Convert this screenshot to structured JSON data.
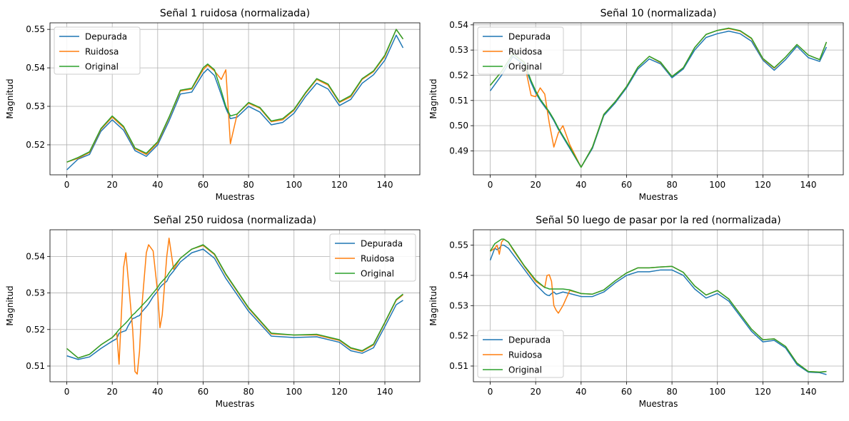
{
  "colors": {
    "series": [
      "#1f77b4",
      "#ff7f0e",
      "#2ca02c"
    ],
    "grid": "#b0b0b0",
    "axis": "#000000",
    "background": "#ffffff"
  },
  "chart_data": [
    {
      "type": "line",
      "title": "Señal 1 ruidosa (normalizada)",
      "xlabel": "Muestras",
      "ylabel": "Magnitud",
      "xlim": [
        -7.4,
        155.4
      ],
      "ylim": [
        0.5122,
        0.5517
      ],
      "xticks": [
        0,
        20,
        40,
        60,
        80,
        100,
        120,
        140
      ],
      "xtick_labels": [
        "0",
        "20",
        "40",
        "60",
        "80",
        "100",
        "120",
        "140"
      ],
      "yticks": [
        0.52,
        0.53,
        0.54,
        0.55
      ],
      "ytick_labels": [
        "0.52",
        "0.53",
        "0.54",
        "0.55"
      ],
      "grid": true,
      "legend_position": "upper-left",
      "x": [
        0,
        5,
        10,
        15,
        20,
        25,
        30,
        35,
        40,
        45,
        50,
        55,
        60,
        62,
        65,
        68,
        70,
        72,
        75,
        80,
        85,
        90,
        95,
        100,
        105,
        110,
        115,
        120,
        125,
        130,
        135,
        140,
        145,
        148
      ],
      "series": [
        {
          "name": "Depurada",
          "values": [
            0.5135,
            0.5163,
            0.5175,
            0.5235,
            0.5265,
            0.5238,
            0.5185,
            0.517,
            0.52,
            0.5262,
            0.5332,
            0.5337,
            0.5385,
            0.5397,
            0.538,
            0.533,
            0.5295,
            0.5268,
            0.5272,
            0.53,
            0.5285,
            0.5252,
            0.5258,
            0.5282,
            0.5325,
            0.536,
            0.5345,
            0.5302,
            0.5318,
            0.536,
            0.5382,
            0.542,
            0.5485,
            0.5452
          ]
        },
        {
          "name": "Ruidosa",
          "values": [
            0.5155,
            0.5165,
            0.518,
            0.524,
            0.5272,
            0.5245,
            0.519,
            0.5175,
            0.5205,
            0.527,
            0.534,
            0.5345,
            0.5395,
            0.5407,
            0.5392,
            0.537,
            0.5395,
            0.5203,
            0.528,
            0.5308,
            0.5295,
            0.526,
            0.5265,
            0.529,
            0.5333,
            0.537,
            0.5355,
            0.531,
            0.5325,
            0.537,
            0.539,
            0.543,
            0.55,
            0.5475
          ]
        },
        {
          "name": "Original",
          "values": [
            0.5155,
            0.5167,
            0.5182,
            0.5242,
            0.5275,
            0.5248,
            0.5192,
            0.5178,
            0.5208,
            0.5272,
            0.5342,
            0.5347,
            0.54,
            0.541,
            0.5395,
            0.534,
            0.53,
            0.5275,
            0.528,
            0.531,
            0.5297,
            0.5262,
            0.5268,
            0.5292,
            0.5335,
            0.5372,
            0.5358,
            0.5312,
            0.5328,
            0.5372,
            0.5392,
            0.5433,
            0.55,
            0.5475
          ]
        }
      ]
    },
    {
      "type": "line",
      "title": "Señal 10 (normalizada)",
      "xlabel": "Muestras",
      "ylabel": "Magnitud",
      "xlim": [
        -7.4,
        155.4
      ],
      "ylim": [
        0.4805,
        0.5408
      ],
      "xticks": [
        0,
        20,
        40,
        60,
        80,
        100,
        120,
        140
      ],
      "xtick_labels": [
        "0",
        "20",
        "40",
        "60",
        "80",
        "100",
        "120",
        "140"
      ],
      "yticks": [
        0.49,
        0.5,
        0.51,
        0.52,
        0.53,
        0.54
      ],
      "ytick_labels": [
        "0.49",
        "0.50",
        "0.51",
        "0.52",
        "0.53",
        "0.54"
      ],
      "grid": true,
      "legend_position": "upper-left",
      "x": [
        0,
        5,
        10,
        15,
        18,
        20,
        22,
        24,
        26,
        28,
        30,
        32,
        35,
        40,
        45,
        50,
        55,
        60,
        65,
        70,
        75,
        80,
        85,
        90,
        95,
        100,
        105,
        110,
        115,
        120,
        125,
        130,
        135,
        140,
        145,
        148
      ],
      "series": [
        {
          "name": "Depurada",
          "values": [
            0.5138,
            0.52,
            0.5275,
            0.5242,
            0.517,
            0.513,
            0.51,
            0.5075,
            0.505,
            0.502,
            0.4985,
            0.4955,
            0.491,
            0.4835,
            0.491,
            0.504,
            0.509,
            0.515,
            0.5225,
            0.5265,
            0.5245,
            0.519,
            0.5225,
            0.53,
            0.535,
            0.5365,
            0.5375,
            0.5365,
            0.5335,
            0.526,
            0.522,
            0.5262,
            0.5315,
            0.527,
            0.5255,
            0.5312
          ]
        },
        {
          "name": "Ruidosa",
          "values": [
            0.516,
            0.5215,
            0.5285,
            0.525,
            0.512,
            0.5115,
            0.515,
            0.5125,
            0.501,
            0.4915,
            0.4972,
            0.5,
            0.4925,
            0.4835,
            0.4915,
            0.5045,
            0.5095,
            0.5155,
            0.5232,
            0.5275,
            0.525,
            0.5195,
            0.523,
            0.531,
            0.5362,
            0.5378,
            0.5385,
            0.5375,
            0.5345,
            0.5265,
            0.5228,
            0.5272,
            0.5322,
            0.528,
            0.5262,
            0.5332
          ]
        },
        {
          "name": "Original",
          "values": [
            0.516,
            0.5215,
            0.5285,
            0.5252,
            0.5178,
            0.5138,
            0.5105,
            0.508,
            0.5055,
            0.5025,
            0.499,
            0.496,
            0.4915,
            0.4835,
            0.4915,
            0.5045,
            0.5095,
            0.5155,
            0.5232,
            0.5275,
            0.5252,
            0.5195,
            0.523,
            0.531,
            0.5362,
            0.5378,
            0.5387,
            0.5377,
            0.5347,
            0.5267,
            0.523,
            0.5272,
            0.5322,
            0.528,
            0.5262,
            0.5332
          ]
        }
      ]
    },
    {
      "type": "line",
      "title": "Señal 250 ruidosa (normalizada)",
      "xlabel": "Muestras",
      "ylabel": "Magnitud",
      "xlim": [
        -7.4,
        155.4
      ],
      "ylim": [
        0.5057,
        0.5473
      ],
      "xticks": [
        0,
        20,
        40,
        60,
        80,
        100,
        120,
        140
      ],
      "xtick_labels": [
        "0",
        "20",
        "40",
        "60",
        "80",
        "100",
        "120",
        "140"
      ],
      "yticks": [
        0.51,
        0.52,
        0.53,
        0.54
      ],
      "ytick_labels": [
        "0.51",
        "0.52",
        "0.53",
        "0.54"
      ],
      "grid": true,
      "legend_position": "upper-right",
      "x": [
        0,
        5,
        10,
        15,
        20,
        22,
        23,
        25,
        26,
        27,
        29,
        30,
        31,
        32,
        33,
        35,
        36,
        38,
        40,
        41,
        42,
        44,
        45,
        47,
        50,
        55,
        60,
        65,
        70,
        80,
        90,
        100,
        110,
        120,
        125,
        130,
        135,
        140,
        145,
        148
      ],
      "series": [
        {
          "name": "Depurada",
          "values": [
            0.5128,
            0.5118,
            0.5125,
            0.5148,
            0.5168,
            0.5175,
            0.519,
            0.5195,
            0.5197,
            0.521,
            0.523,
            0.5232,
            0.5236,
            0.5238,
            0.5248,
            0.5262,
            0.527,
            0.529,
            0.5305,
            0.5315,
            0.5322,
            0.5332,
            0.5345,
            0.536,
            0.5385,
            0.541,
            0.542,
            0.5395,
            0.534,
            0.525,
            0.5182,
            0.5178,
            0.518,
            0.5165,
            0.5142,
            0.5135,
            0.515,
            0.5208,
            0.5268,
            0.528
          ]
        },
        {
          "name": "Ruidosa",
          "values": [
            0.5148,
            0.5122,
            0.5132,
            0.5158,
            0.5178,
            0.519,
            0.5105,
            0.537,
            0.541,
            0.534,
            0.52,
            0.5085,
            0.5078,
            0.514,
            0.526,
            0.541,
            0.5432,
            0.5415,
            0.53,
            0.5205,
            0.524,
            0.54,
            0.545,
            0.5365,
            0.5395,
            0.542,
            0.543,
            0.5405,
            0.535,
            0.5258,
            0.5188,
            0.5185,
            0.5185,
            0.517,
            0.5148,
            0.514,
            0.5158,
            0.5218,
            0.528,
            0.5295
          ]
        },
        {
          "name": "Original",
          "values": [
            0.5148,
            0.5122,
            0.5132,
            0.5158,
            0.5178,
            0.5192,
            0.52,
            0.5212,
            0.5218,
            0.5225,
            0.524,
            0.5245,
            0.5252,
            0.5258,
            0.5265,
            0.5278,
            0.5285,
            0.53,
            0.5315,
            0.5325,
            0.5332,
            0.5345,
            0.5355,
            0.5372,
            0.5395,
            0.542,
            0.5432,
            0.5407,
            0.5352,
            0.526,
            0.519,
            0.5185,
            0.5187,
            0.5172,
            0.515,
            0.5142,
            0.516,
            0.522,
            0.5282,
            0.5297
          ]
        }
      ]
    },
    {
      "type": "line",
      "title": "Señal 50 luego de pasar por la red (normalizada)",
      "xlabel": "Muestras",
      "ylabel": "Magnitud",
      "xlim": [
        -7.4,
        155.4
      ],
      "ylim": [
        0.5048,
        0.5551
      ],
      "xticks": [
        0,
        20,
        40,
        60,
        80,
        100,
        120,
        140
      ],
      "xtick_labels": [
        "0",
        "20",
        "40",
        "60",
        "80",
        "100",
        "120",
        "140"
      ],
      "yticks": [
        0.51,
        0.52,
        0.53,
        0.54,
        0.55
      ],
      "ytick_labels": [
        "0.51",
        "0.52",
        "0.53",
        "0.54",
        "0.55"
      ],
      "grid": true,
      "legend_position": "lower-left",
      "x": [
        0,
        2,
        3,
        4,
        5,
        6,
        8,
        10,
        15,
        20,
        24,
        25,
        26,
        27,
        28,
        29,
        30,
        32,
        35,
        40,
        45,
        50,
        55,
        60,
        65,
        70,
        75,
        80,
        85,
        90,
        95,
        100,
        105,
        110,
        115,
        120,
        125,
        130,
        135,
        140,
        145,
        148
      ],
      "series": [
        {
          "name": "Depurada",
          "values": [
            0.545,
            0.549,
            0.5485,
            0.549,
            0.55,
            0.55,
            0.549,
            0.547,
            0.542,
            0.537,
            0.534,
            0.5335,
            0.5333,
            0.534,
            0.5345,
            0.5338,
            0.534,
            0.5345,
            0.534,
            0.533,
            0.533,
            0.5345,
            0.5375,
            0.54,
            0.5412,
            0.5412,
            0.5418,
            0.5418,
            0.54,
            0.5355,
            0.5325,
            0.534,
            0.5315,
            0.5265,
            0.5215,
            0.518,
            0.5185,
            0.516,
            0.5105,
            0.508,
            0.5078,
            0.5072
          ]
        },
        {
          "name": "Ruidosa",
          "values": [
            0.548,
            0.549,
            0.55,
            0.547,
            0.551,
            0.552,
            0.551,
            0.5485,
            0.543,
            0.538,
            0.536,
            0.54,
            0.5402,
            0.538,
            0.53,
            0.5285,
            0.5275,
            0.53,
            0.535,
            0.534,
            0.5338,
            0.5352,
            0.5382,
            0.5408,
            0.5425,
            0.5425,
            0.5428,
            0.543,
            0.541,
            0.5365,
            0.5335,
            0.535,
            0.5322,
            0.5272,
            0.5222,
            0.5187,
            0.519,
            0.5165,
            0.511,
            0.5082,
            0.508,
            0.5082
          ]
        },
        {
          "name": "Original",
          "values": [
            0.548,
            0.5505,
            0.551,
            0.5515,
            0.552,
            0.552,
            0.551,
            0.5488,
            0.5432,
            0.5385,
            0.536,
            0.5358,
            0.5355,
            0.5355,
            0.5355,
            0.5355,
            0.5355,
            0.5355,
            0.5352,
            0.534,
            0.5338,
            0.5352,
            0.5382,
            0.5408,
            0.5425,
            0.5425,
            0.5428,
            0.543,
            0.541,
            0.5365,
            0.5335,
            0.535,
            0.5322,
            0.5272,
            0.5222,
            0.5187,
            0.519,
            0.5165,
            0.511,
            0.5082,
            0.508,
            0.5082
          ]
        }
      ]
    }
  ]
}
